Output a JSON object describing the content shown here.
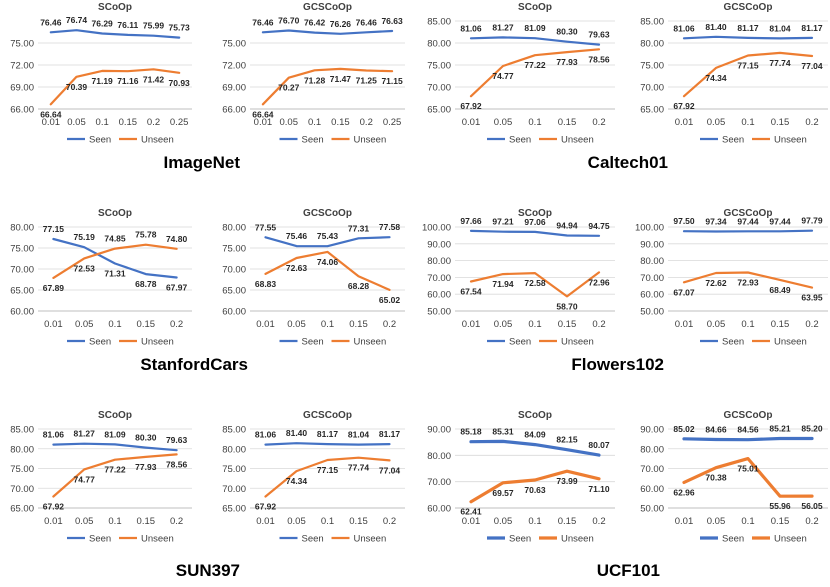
{
  "colors": {
    "seen": "#4472C4",
    "unseen": "#ED7D31",
    "grid": "#d9d9d9",
    "axis": "#bfbfbf",
    "text": "#404040"
  },
  "dataset_titles": [
    "ImageNet",
    "Caltech01",
    "StanfordCars",
    "Flowers102",
    "SUN397",
    "UCF101"
  ],
  "chart_data": [
    {
      "type": "line",
      "title": "SCoOp",
      "categories": [
        "0.01",
        "0.05",
        "0.1",
        "0.15",
        "0.2",
        "0.25"
      ],
      "yticks": [
        "66.00",
        "69.00",
        "72.00",
        "75.00"
      ],
      "ylim": [
        66,
        78
      ],
      "series": [
        {
          "name": "Seen",
          "values": [
            76.46,
            76.74,
            76.29,
            76.11,
            75.99,
            75.73
          ]
        },
        {
          "name": "Unseen",
          "values": [
            66.64,
            70.39,
            71.19,
            71.16,
            71.42,
            70.93
          ]
        }
      ],
      "labels_seen": [
        "76.46",
        "76.74",
        "76.29",
        "76.11",
        "75.99",
        "75.73"
      ],
      "labels_unseen": [
        "66.64",
        "70.39",
        "71.19",
        "71.16",
        "71.42",
        "70.93"
      ],
      "legend": "bottom",
      "grid": true
    },
    {
      "type": "line",
      "title": "GCSCoOp",
      "categories": [
        "0.01",
        "0.05",
        "0.1",
        "0.15",
        "0.2",
        "0.25"
      ],
      "yticks": [
        "66.00",
        "69.00",
        "72.00",
        "75.00"
      ],
      "ylim": [
        66,
        78
      ],
      "series": [
        {
          "name": "Seen",
          "values": [
            76.46,
            76.7,
            76.42,
            76.26,
            76.46,
            76.63
          ]
        },
        {
          "name": "Unseen",
          "values": [
            66.64,
            70.27,
            71.28,
            71.47,
            71.25,
            71.15
          ]
        }
      ],
      "labels_seen": [
        "76.46",
        "76.70",
        "76.42",
        "76.26",
        "76.46",
        "76.63"
      ],
      "labels_unseen": [
        "66.64",
        "70.27",
        "71.28",
        "71.47",
        "71.25",
        "71.15"
      ],
      "legend": "bottom",
      "grid": true
    },
    {
      "type": "line",
      "title": "SCoOp",
      "categories": [
        "0.01",
        "0.05",
        "0.1",
        "0.15",
        "0.2"
      ],
      "yticks": [
        "65.00",
        "70.00",
        "75.00",
        "80.00",
        "85.00"
      ],
      "ylim": [
        65,
        85
      ],
      "series": [
        {
          "name": "Seen",
          "values": [
            81.06,
            81.27,
            81.09,
            80.3,
            79.63
          ]
        },
        {
          "name": "Unseen",
          "values": [
            67.92,
            74.77,
            77.22,
            77.93,
            78.56
          ]
        }
      ],
      "labels_seen": [
        "81.06",
        "81.27",
        "81.09",
        "80.30",
        "79.63"
      ],
      "labels_unseen": [
        "67.92",
        "74.77",
        "77.22",
        "77.93",
        "78.56"
      ],
      "legend": "bottom",
      "grid": true
    },
    {
      "type": "line",
      "title": "GCSCoOp",
      "categories": [
        "0.01",
        "0.05",
        "0.1",
        "0.15",
        "0.2"
      ],
      "yticks": [
        "65.00",
        "70.00",
        "75.00",
        "80.00",
        "85.00"
      ],
      "ylim": [
        65,
        85
      ],
      "series": [
        {
          "name": "Seen",
          "values": [
            81.06,
            81.4,
            81.17,
            81.04,
            81.17
          ]
        },
        {
          "name": "Unseen",
          "values": [
            67.92,
            74.34,
            77.15,
            77.74,
            77.04
          ]
        }
      ],
      "labels_seen": [
        "81.06",
        "81.40",
        "81.17",
        "81.04",
        "81.17"
      ],
      "labels_unseen": [
        "67.92",
        "74.34",
        "77.15",
        "77.74",
        "77.04"
      ],
      "legend": "bottom",
      "grid": true
    },
    {
      "type": "line",
      "title": "SCoOp",
      "categories": [
        "0.01",
        "0.05",
        "0.1",
        "0.15",
        "0.2"
      ],
      "yticks": [
        "60.00",
        "65.00",
        "70.00",
        "75.00",
        "80.00"
      ],
      "ylim": [
        60,
        80
      ],
      "series": [
        {
          "name": "Seen",
          "values": [
            77.15,
            75.19,
            71.31,
            68.78,
            67.97
          ]
        },
        {
          "name": "Unseen",
          "values": [
            67.89,
            72.53,
            74.85,
            75.78,
            74.8
          ]
        }
      ],
      "labels_seen": [
        "77.15",
        "75.19",
        "71.31",
        "68.78",
        "67.97"
      ],
      "labels_unseen": [
        "67.89",
        "72.53",
        "74.85",
        "75.78",
        "74.80"
      ],
      "legend": "bottom",
      "grid": true
    },
    {
      "type": "line",
      "title": "GCSCoOp",
      "categories": [
        "0.01",
        "0.05",
        "0.1",
        "0.15",
        "0.2"
      ],
      "yticks": [
        "60.00",
        "65.00",
        "70.00",
        "75.00",
        "80.00"
      ],
      "ylim": [
        60,
        80
      ],
      "series": [
        {
          "name": "Seen",
          "values": [
            77.55,
            75.46,
            75.43,
            77.31,
            77.58
          ]
        },
        {
          "name": "Unseen",
          "values": [
            68.83,
            72.63,
            74.06,
            68.28,
            65.02
          ]
        }
      ],
      "labels_seen": [
        "77.55",
        "75.46",
        "75.43",
        "77.31",
        "77.58"
      ],
      "labels_unseen": [
        "68.83",
        "72.63",
        "74.06",
        "68.28",
        "65.02"
      ],
      "legend": "bottom",
      "grid": true
    },
    {
      "type": "line",
      "title": "SCoOp",
      "categories": [
        "0.01",
        "0.05",
        "0.1",
        "0.15",
        "0.2"
      ],
      "yticks": [
        "50.00",
        "60.00",
        "70.00",
        "80.00",
        "90.00",
        "100.00"
      ],
      "ylim": [
        50,
        100
      ],
      "series": [
        {
          "name": "Seen",
          "values": [
            97.66,
            97.21,
            97.06,
            94.94,
            94.75
          ]
        },
        {
          "name": "Unseen",
          "values": [
            67.54,
            71.94,
            72.58,
            58.7,
            72.96
          ]
        }
      ],
      "labels_seen": [
        "97.66",
        "97.21",
        "97.06",
        "94.94",
        "94.75"
      ],
      "labels_unseen": [
        "67.54",
        "71.94",
        "72.58",
        "58.70",
        "72.96"
      ],
      "legend": "bottom",
      "grid": true
    },
    {
      "type": "line",
      "title": "GCSCoOp",
      "categories": [
        "0.01",
        "0.05",
        "0.1",
        "0.15",
        "0.2"
      ],
      "yticks": [
        "50.00",
        "60.00",
        "70.00",
        "80.00",
        "90.00",
        "100.00"
      ],
      "ylim": [
        50,
        100
      ],
      "series": [
        {
          "name": "Seen",
          "values": [
            97.5,
            97.34,
            97.44,
            97.44,
            97.79
          ]
        },
        {
          "name": "Unseen",
          "values": [
            67.07,
            72.62,
            72.93,
            68.49,
            63.95
          ]
        }
      ],
      "labels_seen": [
        "97.50",
        "97.34",
        "97.44",
        "97.44",
        "97.79"
      ],
      "labels_unseen": [
        "67.07",
        "72.62",
        "72.93",
        "68.49",
        "63.95"
      ],
      "legend": "bottom",
      "grid": true
    },
    {
      "type": "line",
      "title": "SCoOp",
      "categories": [
        "0.01",
        "0.05",
        "0.1",
        "0.15",
        "0.2"
      ],
      "yticks": [
        "65.00",
        "70.00",
        "75.00",
        "80.00",
        "85.00"
      ],
      "ylim": [
        65,
        85
      ],
      "series": [
        {
          "name": "Seen",
          "values": [
            81.06,
            81.27,
            81.09,
            80.3,
            79.63
          ]
        },
        {
          "name": "Unseen",
          "values": [
            67.92,
            74.77,
            77.22,
            77.93,
            78.56
          ]
        }
      ],
      "labels_seen": [
        "81.06",
        "81.27",
        "81.09",
        "80.30",
        "79.63"
      ],
      "labels_unseen": [
        "67.92",
        "74.77",
        "77.22",
        "77.93",
        "78.56"
      ],
      "legend": "bottom",
      "grid": true
    },
    {
      "type": "line",
      "title": "GCSCoOp",
      "categories": [
        "0.01",
        "0.05",
        "0.1",
        "0.15",
        "0.2"
      ],
      "yticks": [
        "65.00",
        "70.00",
        "75.00",
        "80.00",
        "85.00"
      ],
      "ylim": [
        65,
        85
      ],
      "series": [
        {
          "name": "Seen",
          "values": [
            81.06,
            81.4,
            81.17,
            81.04,
            81.17
          ]
        },
        {
          "name": "Unseen",
          "values": [
            67.92,
            74.34,
            77.15,
            77.74,
            77.04
          ]
        }
      ],
      "labels_seen": [
        "81.06",
        "81.40",
        "81.17",
        "81.04",
        "81.17"
      ],
      "labels_unseen": [
        "67.92",
        "74.34",
        "77.15",
        "77.74",
        "77.04"
      ],
      "legend": "bottom",
      "grid": true
    },
    {
      "type": "line",
      "title": "SCoOp",
      "categories": [
        "0.01",
        "0.05",
        "0.1",
        "0.15",
        "0.2"
      ],
      "yticks": [
        "60.00",
        "70.00",
        "80.00",
        "90.00"
      ],
      "ylim": [
        60,
        90
      ],
      "series": [
        {
          "name": "Seen",
          "values": [
            85.18,
            85.31,
            84.09,
            82.15,
            80.07
          ]
        },
        {
          "name": "Unseen",
          "values": [
            62.41,
            69.57,
            70.63,
            73.99,
            71.1
          ]
        }
      ],
      "labels_seen": [
        "85.18",
        "85.31",
        "84.09",
        "82.15",
        "80.07"
      ],
      "labels_unseen": [
        "62.41",
        "69.57",
        "70.63",
        "73.99",
        "71.10"
      ],
      "legend": "bottom",
      "grid": true
    },
    {
      "type": "line",
      "title": "GCSCoOp",
      "categories": [
        "0.01",
        "0.05",
        "0.1",
        "0.15",
        "0.2"
      ],
      "yticks": [
        "50.00",
        "60.00",
        "70.00",
        "80.00",
        "90.00"
      ],
      "ylim": [
        50,
        90
      ],
      "series": [
        {
          "name": "Seen",
          "values": [
            85.02,
            84.66,
            84.56,
            85.21,
            85.2
          ]
        },
        {
          "name": "Unseen",
          "values": [
            62.96,
            70.38,
            75.01,
            55.96,
            56.05
          ]
        }
      ],
      "labels_seen": [
        "85.02",
        "84.66",
        "84.56",
        "85.21",
        "85.20"
      ],
      "labels_unseen": [
        "62.96",
        "70.38",
        "75.01",
        "55.96",
        "56.05"
      ],
      "legend": "bottom",
      "grid": true
    }
  ]
}
